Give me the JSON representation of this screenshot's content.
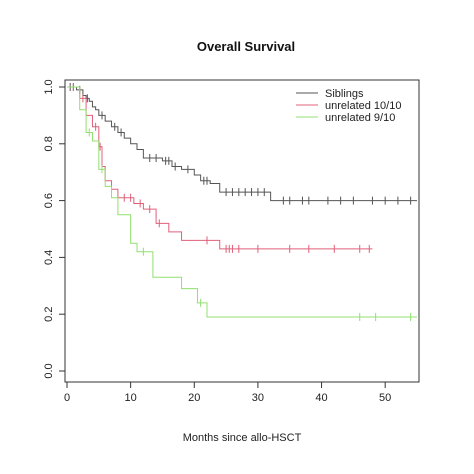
{
  "chart_data": {
    "type": "line",
    "step": true,
    "title": "Overall Survival",
    "xlabel": "Months since allo-HSCT",
    "ylabel": "",
    "xlim": [
      0,
      55
    ],
    "ylim": [
      0,
      1
    ],
    "x_ticks": [
      0,
      10,
      20,
      30,
      40,
      50
    ],
    "y_ticks": [
      0.0,
      0.2,
      0.4,
      0.6,
      0.8,
      1.0
    ],
    "x_tick_labels": [
      "0",
      "10",
      "20",
      "30",
      "40",
      "50"
    ],
    "y_tick_labels": [
      "0.0",
      "0.2",
      "0.4",
      "0.6",
      "0.8",
      "1.0"
    ],
    "grid": false,
    "legend_position": "top-right",
    "series": [
      {
        "name": "Siblings",
        "color": "#555555",
        "x": [
          0,
          1.5,
          2.5,
          3.0,
          3.5,
          4.0,
          4.5,
          5.0,
          6.0,
          7.0,
          8.0,
          9.0,
          10.0,
          11.0,
          12.0,
          13.5,
          15.0,
          16.5,
          18.0,
          20.0,
          21.0,
          22.5,
          24.0,
          32.0,
          55.0
        ],
        "y": [
          1.0,
          0.99,
          0.97,
          0.96,
          0.95,
          0.93,
          0.92,
          0.9,
          0.88,
          0.86,
          0.84,
          0.82,
          0.8,
          0.78,
          0.75,
          0.75,
          0.74,
          0.72,
          0.71,
          0.69,
          0.67,
          0.66,
          0.63,
          0.6,
          0.6
        ],
        "censored": [
          {
            "x": 0.5,
            "y": 1.0
          },
          {
            "x": 1.0,
            "y": 1.0
          },
          {
            "x": 2.0,
            "y": 0.99
          },
          {
            "x": 3.2,
            "y": 0.96
          },
          {
            "x": 5.5,
            "y": 0.9
          },
          {
            "x": 7.5,
            "y": 0.86
          },
          {
            "x": 8.5,
            "y": 0.84
          },
          {
            "x": 13.0,
            "y": 0.75
          },
          {
            "x": 14.0,
            "y": 0.75
          },
          {
            "x": 15.5,
            "y": 0.74
          },
          {
            "x": 16.0,
            "y": 0.74
          },
          {
            "x": 17.0,
            "y": 0.72
          },
          {
            "x": 19.0,
            "y": 0.71
          },
          {
            "x": 21.5,
            "y": 0.67
          },
          {
            "x": 22.0,
            "y": 0.67
          },
          {
            "x": 25.0,
            "y": 0.63
          },
          {
            "x": 26.0,
            "y": 0.63
          },
          {
            "x": 27.0,
            "y": 0.63
          },
          {
            "x": 28.0,
            "y": 0.63
          },
          {
            "x": 29.0,
            "y": 0.63
          },
          {
            "x": 30.0,
            "y": 0.63
          },
          {
            "x": 31.0,
            "y": 0.63
          },
          {
            "x": 34.0,
            "y": 0.6
          },
          {
            "x": 35.0,
            "y": 0.6
          },
          {
            "x": 37.0,
            "y": 0.6
          },
          {
            "x": 38.0,
            "y": 0.6
          },
          {
            "x": 41.0,
            "y": 0.6
          },
          {
            "x": 43.0,
            "y": 0.6
          },
          {
            "x": 45.0,
            "y": 0.6
          },
          {
            "x": 48.0,
            "y": 0.6
          },
          {
            "x": 50.0,
            "y": 0.6
          },
          {
            "x": 52.0,
            "y": 0.6
          },
          {
            "x": 54.0,
            "y": 0.6
          }
        ]
      },
      {
        "name": "unrelated 10/10",
        "color": "#e0607a",
        "x": [
          0,
          2.0,
          3.0,
          4.0,
          5.0,
          5.5,
          6.0,
          7.0,
          8.0,
          9.5,
          10.5,
          12.0,
          14.0,
          16.0,
          18.0,
          24.0,
          48.0
        ],
        "y": [
          1.0,
          0.96,
          0.9,
          0.86,
          0.79,
          0.72,
          0.67,
          0.64,
          0.61,
          0.61,
          0.59,
          0.57,
          0.52,
          0.49,
          0.46,
          0.43,
          0.43
        ],
        "censored": [
          {
            "x": 1.0,
            "y": 1.0
          },
          {
            "x": 2.5,
            "y": 0.96
          },
          {
            "x": 4.5,
            "y": 0.86
          },
          {
            "x": 5.2,
            "y": 0.79
          },
          {
            "x": 9.0,
            "y": 0.61
          },
          {
            "x": 10.0,
            "y": 0.61
          },
          {
            "x": 11.5,
            "y": 0.59
          },
          {
            "x": 13.0,
            "y": 0.57
          },
          {
            "x": 14.5,
            "y": 0.52
          },
          {
            "x": 22.0,
            "y": 0.46
          },
          {
            "x": 25.0,
            "y": 0.43
          },
          {
            "x": 25.5,
            "y": 0.43
          },
          {
            "x": 26.0,
            "y": 0.43
          },
          {
            "x": 27.0,
            "y": 0.43
          },
          {
            "x": 30.0,
            "y": 0.43
          },
          {
            "x": 35.0,
            "y": 0.43
          },
          {
            "x": 38.0,
            "y": 0.43
          },
          {
            "x": 42.0,
            "y": 0.43
          },
          {
            "x": 46.0,
            "y": 0.43
          },
          {
            "x": 47.5,
            "y": 0.43
          }
        ]
      },
      {
        "name": "unrelated 9/10",
        "color": "#90e070",
        "x": [
          0,
          2.0,
          3.0,
          4.0,
          5.0,
          6.0,
          7.0,
          8.0,
          10.0,
          11.0,
          13.5,
          18.0,
          20.5,
          22.0,
          55.0
        ],
        "y": [
          1.0,
          0.92,
          0.84,
          0.81,
          0.71,
          0.65,
          0.61,
          0.55,
          0.45,
          0.42,
          0.33,
          0.29,
          0.24,
          0.19,
          0.19
        ],
        "censored": [
          {
            "x": 3.5,
            "y": 0.84
          },
          {
            "x": 5.5,
            "y": 0.71
          },
          {
            "x": 12.0,
            "y": 0.42
          },
          {
            "x": 21.0,
            "y": 0.24
          },
          {
            "x": 46.0,
            "y": 0.19
          },
          {
            "x": 48.5,
            "y": 0.19
          },
          {
            "x": 54.0,
            "y": 0.19
          }
        ]
      }
    ]
  }
}
